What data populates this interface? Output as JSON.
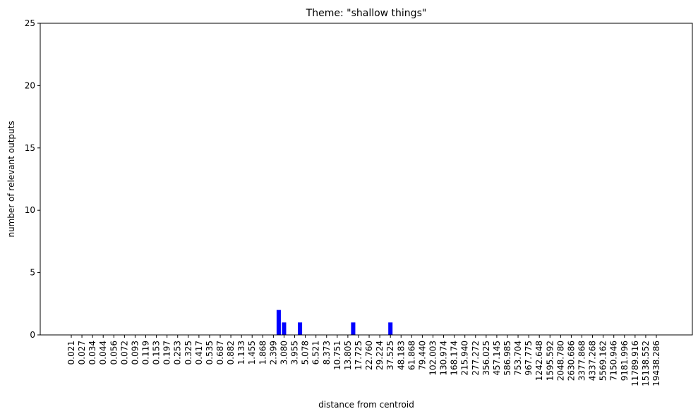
{
  "chart_data": {
    "type": "bar",
    "title": "Theme: \"shallow things\"",
    "xlabel": "distance from centroid",
    "ylabel": "number of relevant outputs",
    "ylim": [
      0,
      25
    ],
    "yticks": [
      0,
      5,
      10,
      15,
      20,
      25
    ],
    "grid": false,
    "bar_color": "#0000ff",
    "bins": [
      0.021,
      0.024,
      0.027,
      0.03,
      0.034,
      0.039,
      0.044,
      0.049,
      0.056,
      0.063,
      0.072,
      0.081,
      0.093,
      0.105,
      0.119,
      0.135,
      0.153,
      0.174,
      0.197,
      0.224,
      0.253,
      0.287,
      0.325,
      0.369,
      0.417,
      0.473,
      0.535,
      0.606,
      0.687,
      0.778,
      0.882,
      1.0,
      1.133,
      1.284,
      1.455,
      1.649,
      1.868,
      2.117,
      2.399,
      2.718,
      3.08,
      3.49,
      3.955,
      4.481,
      5.078,
      5.754,
      6.521,
      7.389,
      8.373,
      9.488,
      10.751,
      12.183,
      13.805,
      15.643,
      17.725,
      20.085,
      22.76,
      25.79,
      29.224,
      33.115,
      37.525,
      42.521,
      48.183,
      54.598,
      61.868,
      70.105,
      79.44,
      90.017,
      102.003,
      115.584,
      130.974,
      148.413,
      168.174,
      190.566,
      215.94,
      244.692,
      277.272,
      314.191,
      356.025,
      403.429,
      457.145,
      518.013,
      586.985,
      665.142,
      753.704,
      854.059,
      967.775,
      1096.633,
      1242.648,
      1408.105,
      1595.592,
      1808.042,
      2048.78,
      2321.572,
      2630.686,
      2980.958,
      3377.868,
      3827.626,
      4337.268,
      4914.769,
      5569.162,
      6310.688,
      7150.946,
      8103.084,
      9181.996,
      10404.565,
      11789.916,
      13359.727,
      15138.552,
      17154.229,
      19438.286
    ],
    "tick_labels": [
      "0.021",
      "0.027",
      "0.034",
      "0.044",
      "0.056",
      "0.072",
      "0.093",
      "0.119",
      "0.153",
      "0.197",
      "0.253",
      "0.325",
      "0.417",
      "0.535",
      "0.687",
      "0.882",
      "1.133",
      "1.455",
      "1.868",
      "2.399",
      "3.080",
      "3.955",
      "5.078",
      "6.521",
      "8.373",
      "10.751",
      "13.805",
      "17.725",
      "22.760",
      "29.224",
      "37.525",
      "48.183",
      "61.868",
      "79.440",
      "102.003",
      "130.974",
      "168.174",
      "215.940",
      "277.272",
      "356.025",
      "457.145",
      "586.985",
      "753.704",
      "967.775",
      "1242.648",
      "1595.592",
      "2048.780",
      "2630.686",
      "3377.868",
      "4337.268",
      "5569.162",
      "7150.946",
      "9181.996",
      "11789.916",
      "15138.552",
      "19438.286"
    ],
    "bars": [
      {
        "x": 2.718,
        "value": 2
      },
      {
        "x": 3.08,
        "value": 1
      },
      {
        "x": 4.481,
        "value": 1
      },
      {
        "x": 15.643,
        "value": 1
      },
      {
        "x": 37.525,
        "value": 1
      }
    ]
  }
}
